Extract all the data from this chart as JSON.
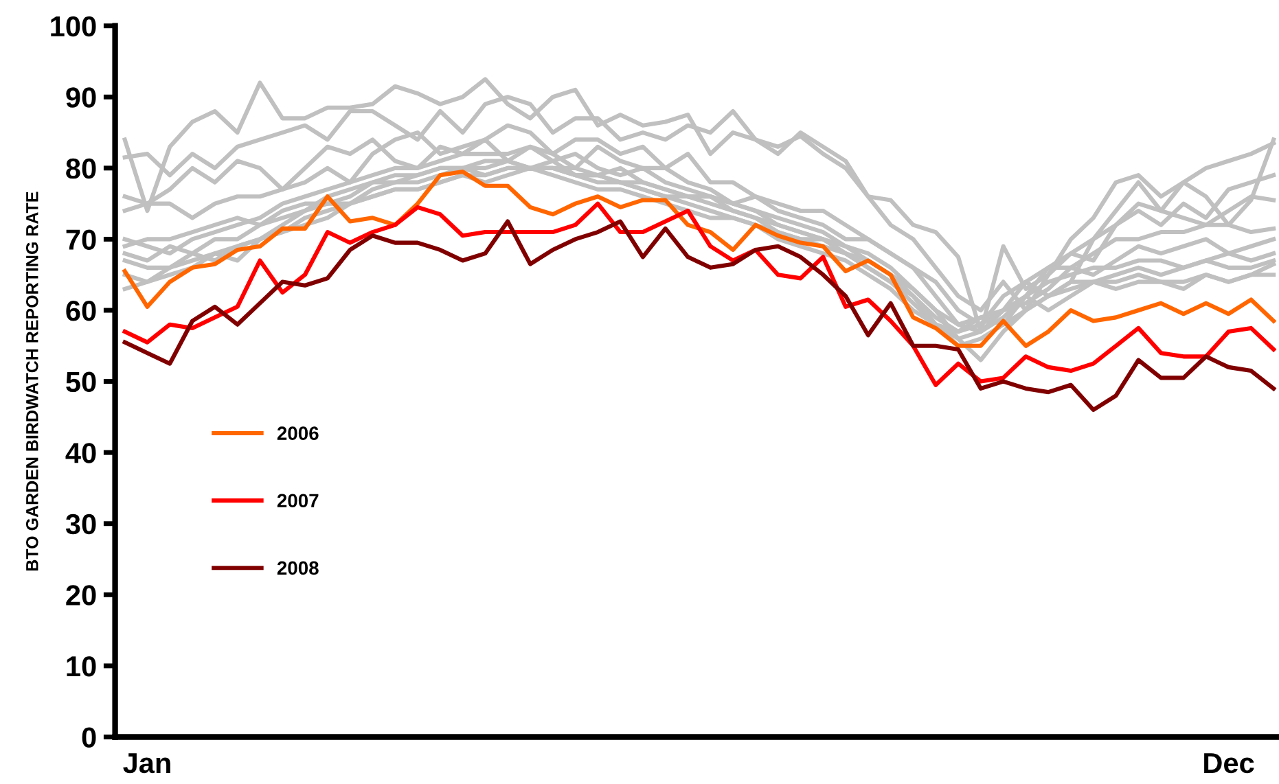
{
  "chart_data": {
    "type": "line",
    "ylabel": "BTO GARDEN BIRDWATCH REPORTING RATE",
    "categories": [
      null,
      "Jan",
      null,
      null,
      null,
      null,
      null,
      null,
      null,
      null,
      null,
      null,
      null,
      null,
      null,
      null,
      null,
      null,
      null,
      null,
      null,
      null,
      null,
      null,
      null,
      null,
      null,
      null,
      null,
      null,
      null,
      null,
      null,
      null,
      null,
      null,
      null,
      null,
      null,
      null,
      null,
      null,
      null,
      null,
      null,
      null,
      null,
      null,
      null,
      "Dec",
      null,
      null
    ],
    "ylim": [
      0,
      100
    ],
    "yticks": [
      0,
      10,
      20,
      30,
      40,
      50,
      60,
      70,
      80,
      90,
      100
    ],
    "grid": false,
    "legend": "left",
    "marker": "none",
    "line_style": "solid",
    "series": [
      {
        "color": "#c0c0c0",
        "values": [
          84,
          74,
          83,
          86.5,
          88,
          85,
          92,
          87,
          87,
          88.5,
          88.5,
          89,
          91.5,
          90.5,
          89,
          90,
          92.5,
          89,
          87,
          90,
          91,
          86,
          87.5,
          86,
          86.5,
          87.5,
          82,
          85,
          84,
          83,
          84.5,
          82,
          80,
          76,
          75.5,
          72,
          71,
          67.5,
          57,
          69,
          63,
          65,
          68,
          70,
          74,
          78,
          74,
          78,
          76,
          72,
          75.5,
          84
        ]
      },
      {
        "color": "#c0c0c0",
        "values": [
          81.5,
          82,
          79,
          82,
          80,
          83,
          84,
          85,
          86,
          84,
          88,
          88,
          86,
          84,
          88,
          85,
          89,
          90,
          89,
          85,
          87,
          87,
          84,
          85,
          84,
          86,
          85,
          88,
          84,
          82,
          85,
          83,
          81,
          76,
          72,
          70,
          66,
          62,
          60,
          64,
          60,
          65,
          70,
          73,
          78,
          79,
          76,
          78,
          80,
          81,
          82,
          83.5
        ]
      },
      {
        "color": "#c0c0c0",
        "values": [
          76,
          75,
          77,
          80,
          78,
          81,
          80,
          77,
          80,
          83,
          82,
          84,
          81,
          80,
          83,
          82,
          84,
          81,
          83,
          82,
          80,
          83,
          81,
          80,
          80,
          78,
          77,
          75,
          76,
          74,
          73,
          72,
          70,
          70,
          68,
          66,
          62,
          58,
          57,
          60,
          62,
          66,
          68,
          67,
          72,
          74,
          72,
          75,
          73,
          77,
          78,
          79
        ]
      },
      {
        "color": "#c0c0c0",
        "values": [
          74,
          75,
          75,
          73,
          75,
          76,
          76,
          77,
          78,
          80,
          78,
          82,
          84,
          85,
          82,
          83,
          84,
          86,
          85,
          82,
          84,
          84,
          82,
          83,
          80,
          82,
          78,
          78,
          76,
          75,
          74,
          74,
          72,
          70,
          68,
          66,
          64,
          60,
          58,
          62,
          64,
          62,
          64,
          70,
          72,
          75,
          74,
          73,
          72,
          74,
          76,
          75.5
        ]
      },
      {
        "color": "#c0c0c0",
        "values": [
          70,
          69,
          68,
          70,
          71,
          72,
          73,
          75,
          76,
          77,
          78,
          79,
          80,
          80,
          81,
          82,
          82,
          82,
          83,
          81,
          82,
          80,
          79,
          80,
          78,
          77,
          76,
          75,
          74,
          73,
          72,
          71,
          69,
          68,
          66,
          63,
          60,
          58,
          59,
          60,
          61,
          63,
          66,
          68,
          70,
          70,
          71,
          71,
          72,
          72,
          71,
          71.5
        ]
      },
      {
        "color": "#c0c0c0",
        "values": [
          68,
          67,
          69,
          68,
          70,
          70,
          72,
          73,
          74,
          76,
          77,
          78,
          79,
          79,
          80,
          80,
          81,
          81,
          80,
          80,
          79,
          79,
          80,
          78,
          77,
          76,
          76,
          74,
          73,
          72,
          71,
          70,
          69,
          67,
          65,
          62,
          59,
          57,
          58,
          60,
          64,
          66,
          66,
          65,
          67,
          69,
          68,
          69,
          70,
          68,
          69,
          70
        ]
      },
      {
        "color": "#c0c0c0",
        "values": [
          67,
          66,
          66,
          68,
          67,
          69,
          70,
          72,
          74,
          75,
          75,
          77,
          78,
          78,
          79,
          80,
          79,
          80,
          80,
          81,
          79,
          78,
          78,
          77,
          76,
          76,
          75,
          74,
          73,
          71,
          70,
          69,
          68,
          66,
          64,
          61,
          58,
          56,
          57,
          59,
          62,
          64,
          65,
          66,
          66,
          67,
          67,
          66,
          67,
          68,
          67,
          68
        ]
      },
      {
        "color": "#c0c0c0",
        "values": [
          65,
          64,
          66,
          67,
          68,
          67,
          70,
          71,
          73,
          74,
          75,
          76,
          77,
          77,
          78,
          79,
          78,
          79,
          80,
          79,
          78,
          77,
          77,
          76,
          75,
          74,
          73,
          73,
          72,
          70,
          69,
          68,
          67,
          65,
          63,
          60,
          58,
          55,
          56,
          58,
          60,
          62,
          64,
          64,
          65,
          66,
          65,
          66,
          67,
          66,
          66,
          67
        ]
      },
      {
        "color": "#c0c0c0",
        "values": [
          69,
          70,
          70,
          71,
          72,
          73,
          72,
          74,
          75,
          75,
          76,
          78,
          78,
          79,
          80,
          80,
          80,
          81,
          80,
          80,
          79,
          79,
          78,
          78,
          77,
          76,
          76,
          75,
          74,
          72,
          71,
          70,
          68,
          66,
          64,
          62,
          58,
          57,
          59,
          58,
          62,
          60,
          62,
          64,
          63,
          64,
          64,
          63,
          65,
          64,
          65,
          66.5
        ]
      },
      {
        "color": "#c0c0c0",
        "values": [
          63,
          64,
          65,
          66,
          68,
          69,
          70,
          71,
          72,
          73,
          75,
          76,
          77,
          77,
          78,
          79,
          79,
          80,
          80,
          80,
          80,
          79,
          78,
          77,
          76,
          75,
          74,
          73,
          72,
          71,
          70,
          70,
          68,
          67,
          65,
          63,
          60,
          56,
          53,
          57,
          60,
          62,
          63,
          64,
          64,
          65,
          64,
          64,
          65,
          64,
          65,
          65
        ]
      },
      {
        "name": "2006",
        "color": "#ff6600",
        "values": [
          65.5,
          60.5,
          64,
          66,
          66.5,
          68.5,
          69,
          71.5,
          71.5,
          76,
          72.5,
          73,
          72,
          75,
          79,
          79.5,
          77.5,
          77.5,
          74.5,
          73.5,
          75,
          76,
          74.5,
          75.5,
          75.5,
          72,
          71,
          68.5,
          72,
          70.5,
          69.5,
          69,
          65.5,
          67,
          65,
          59,
          57.5,
          55,
          55,
          58.5,
          55,
          57,
          60,
          58.5,
          59,
          60,
          61,
          59.5,
          61,
          59.5,
          61.5,
          58.5
        ]
      },
      {
        "name": "2007",
        "color": "#ff0000",
        "values": [
          57,
          55.5,
          58,
          57.5,
          59,
          60.5,
          67,
          62.5,
          65,
          71,
          69.5,
          71,
          72,
          74.5,
          73.5,
          70.5,
          71,
          71,
          71,
          71,
          72,
          75,
          71,
          71,
          72.5,
          74,
          69,
          67,
          68.5,
          65,
          64.5,
          67.5,
          60.5,
          61.5,
          58.5,
          55,
          49.5,
          52.5,
          50,
          50.5,
          53.5,
          52,
          51.5,
          52.5,
          55,
          57.5,
          54,
          53.5,
          53.5,
          57,
          57.5,
          54.5
        ]
      },
      {
        "name": "2008",
        "color": "#800000",
        "values": [
          55.5,
          54,
          52.5,
          58.5,
          60.5,
          58,
          61,
          64,
          63.5,
          64.5,
          68.5,
          70.5,
          69.5,
          69.5,
          68.5,
          67,
          68,
          72.5,
          66.5,
          68.5,
          70,
          71,
          72.5,
          67.5,
          71.5,
          67.5,
          66,
          66.5,
          68.5,
          69,
          67.5,
          65,
          62,
          56.5,
          61,
          55,
          55,
          54.5,
          49,
          50,
          49,
          48.5,
          49.5,
          46,
          48,
          53,
          50.5,
          50.5,
          53.5,
          52,
          51.5,
          49
        ]
      }
    ]
  }
}
